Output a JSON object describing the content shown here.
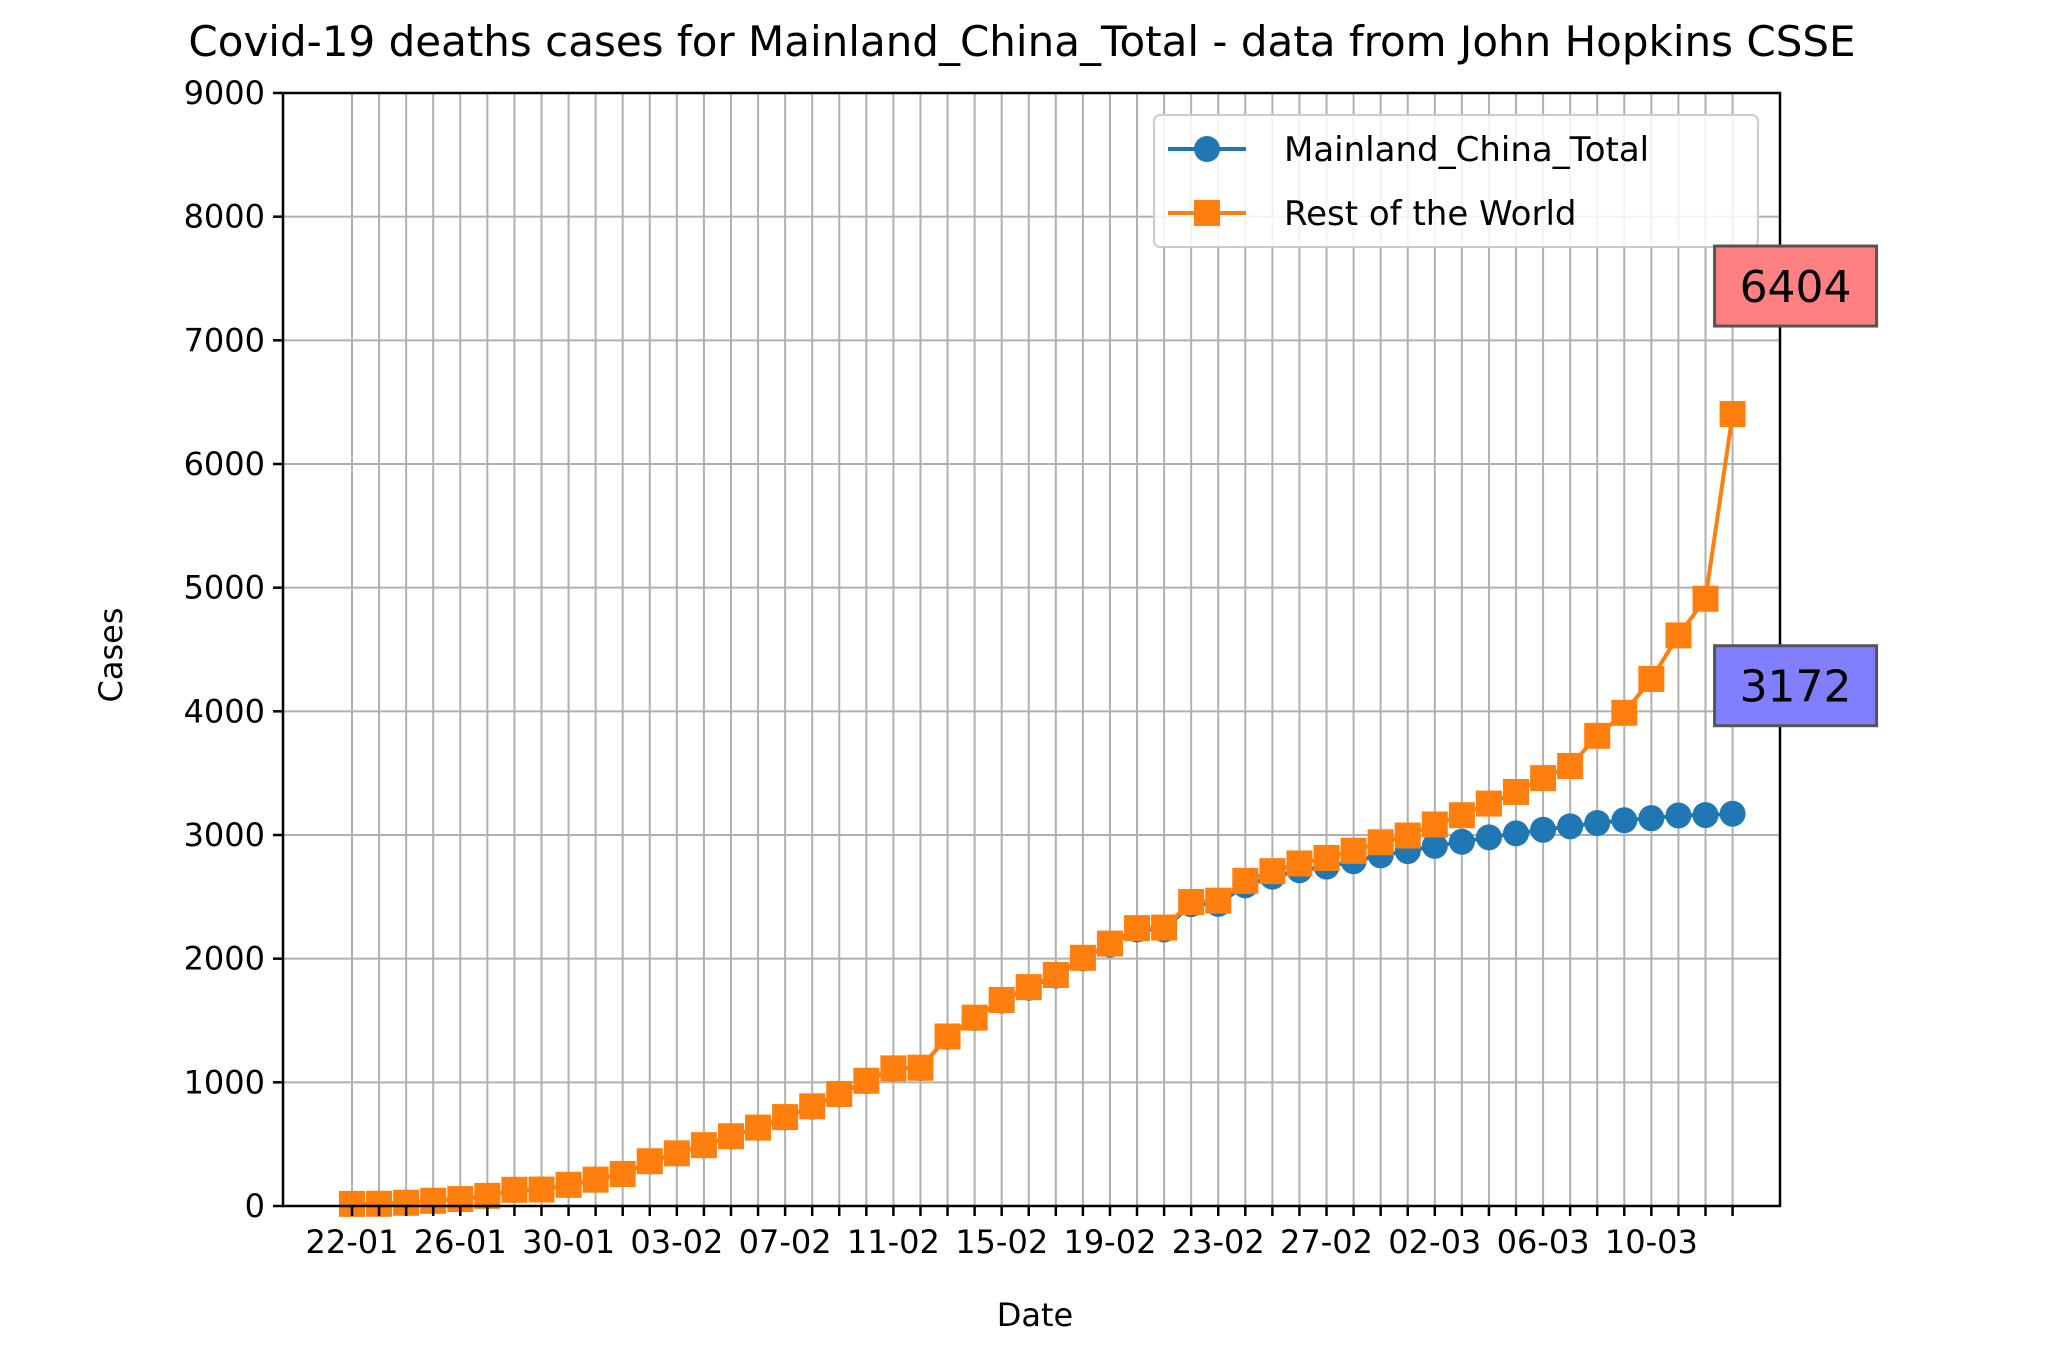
{
  "chart_data": {
    "type": "line",
    "title": "Covid-19 deaths cases for Mainland_China_Total - data from John Hopkins CSSE",
    "xlabel": "Date",
    "ylabel": "Cases",
    "ylim": [
      0,
      9000
    ],
    "yticks": [
      0,
      1000,
      2000,
      3000,
      4000,
      5000,
      6000,
      7000,
      8000,
      9000
    ],
    "x": [
      "22-01",
      "23-01",
      "24-01",
      "25-01",
      "26-01",
      "27-01",
      "28-01",
      "29-01",
      "30-01",
      "31-01",
      "01-02",
      "02-02",
      "03-02",
      "04-02",
      "05-02",
      "06-02",
      "07-02",
      "08-02",
      "09-02",
      "10-02",
      "11-02",
      "12-02",
      "13-02",
      "14-02",
      "15-02",
      "16-02",
      "17-02",
      "18-02",
      "19-02",
      "20-02",
      "21-02",
      "22-02",
      "23-02",
      "24-02",
      "25-02",
      "26-02",
      "27-02",
      "28-02",
      "29-02",
      "01-03",
      "02-03",
      "03-03",
      "04-03",
      "05-03",
      "06-03",
      "07-03",
      "08-03",
      "09-03",
      "10-03",
      "11-03",
      "12-03",
      "13-03"
    ],
    "xtick_labels": [
      "22-01",
      "26-01",
      "30-01",
      "03-02",
      "07-02",
      "11-02",
      "15-02",
      "19-02",
      "23-02",
      "27-02",
      "02-03",
      "06-03",
      "10-03"
    ],
    "grid": true,
    "legend_position": "top-right",
    "series": [
      {
        "name": "Mainland_China_Total",
        "color": "#1f77b4",
        "marker": "circle",
        "values": [
          17,
          18,
          26,
          42,
          56,
          82,
          131,
          133,
          171,
          213,
          259,
          361,
          425,
          490,
          562,
          632,
          717,
          804,
          904,
          1011,
          1111,
          1116,
          1368,
          1520,
          1662,
          1765,
          1863,
          2002,
          2114,
          2236,
          2236,
          2441,
          2443,
          2593,
          2663,
          2715,
          2744,
          2788,
          2835,
          2870,
          2912,
          2945,
          2981,
          3013,
          3042,
          3070,
          3097,
          3119,
          3136,
          3158,
          3161,
          3172
        ],
        "end_label": "3172",
        "end_label_color": "#8080ff"
      },
      {
        "name": "Rest of the World",
        "color": "#ff7f0e",
        "marker": "square",
        "values": [
          17,
          18,
          26,
          42,
          56,
          82,
          131,
          133,
          171,
          213,
          259,
          362,
          426,
          492,
          564,
          634,
          719,
          806,
          906,
          1013,
          1113,
          1118,
          1371,
          1523,
          1666,
          1770,
          1868,
          2007,
          2122,
          2247,
          2251,
          2458,
          2469,
          2629,
          2708,
          2770,
          2814,
          2872,
          2941,
          2996,
          3085,
          3160,
          3254,
          3348,
          3460,
          3558,
          3802,
          3988,
          4262,
          4614,
          4910,
          6404
        ],
        "end_label": "6404",
        "end_label_color": "#ff8080"
      }
    ]
  }
}
